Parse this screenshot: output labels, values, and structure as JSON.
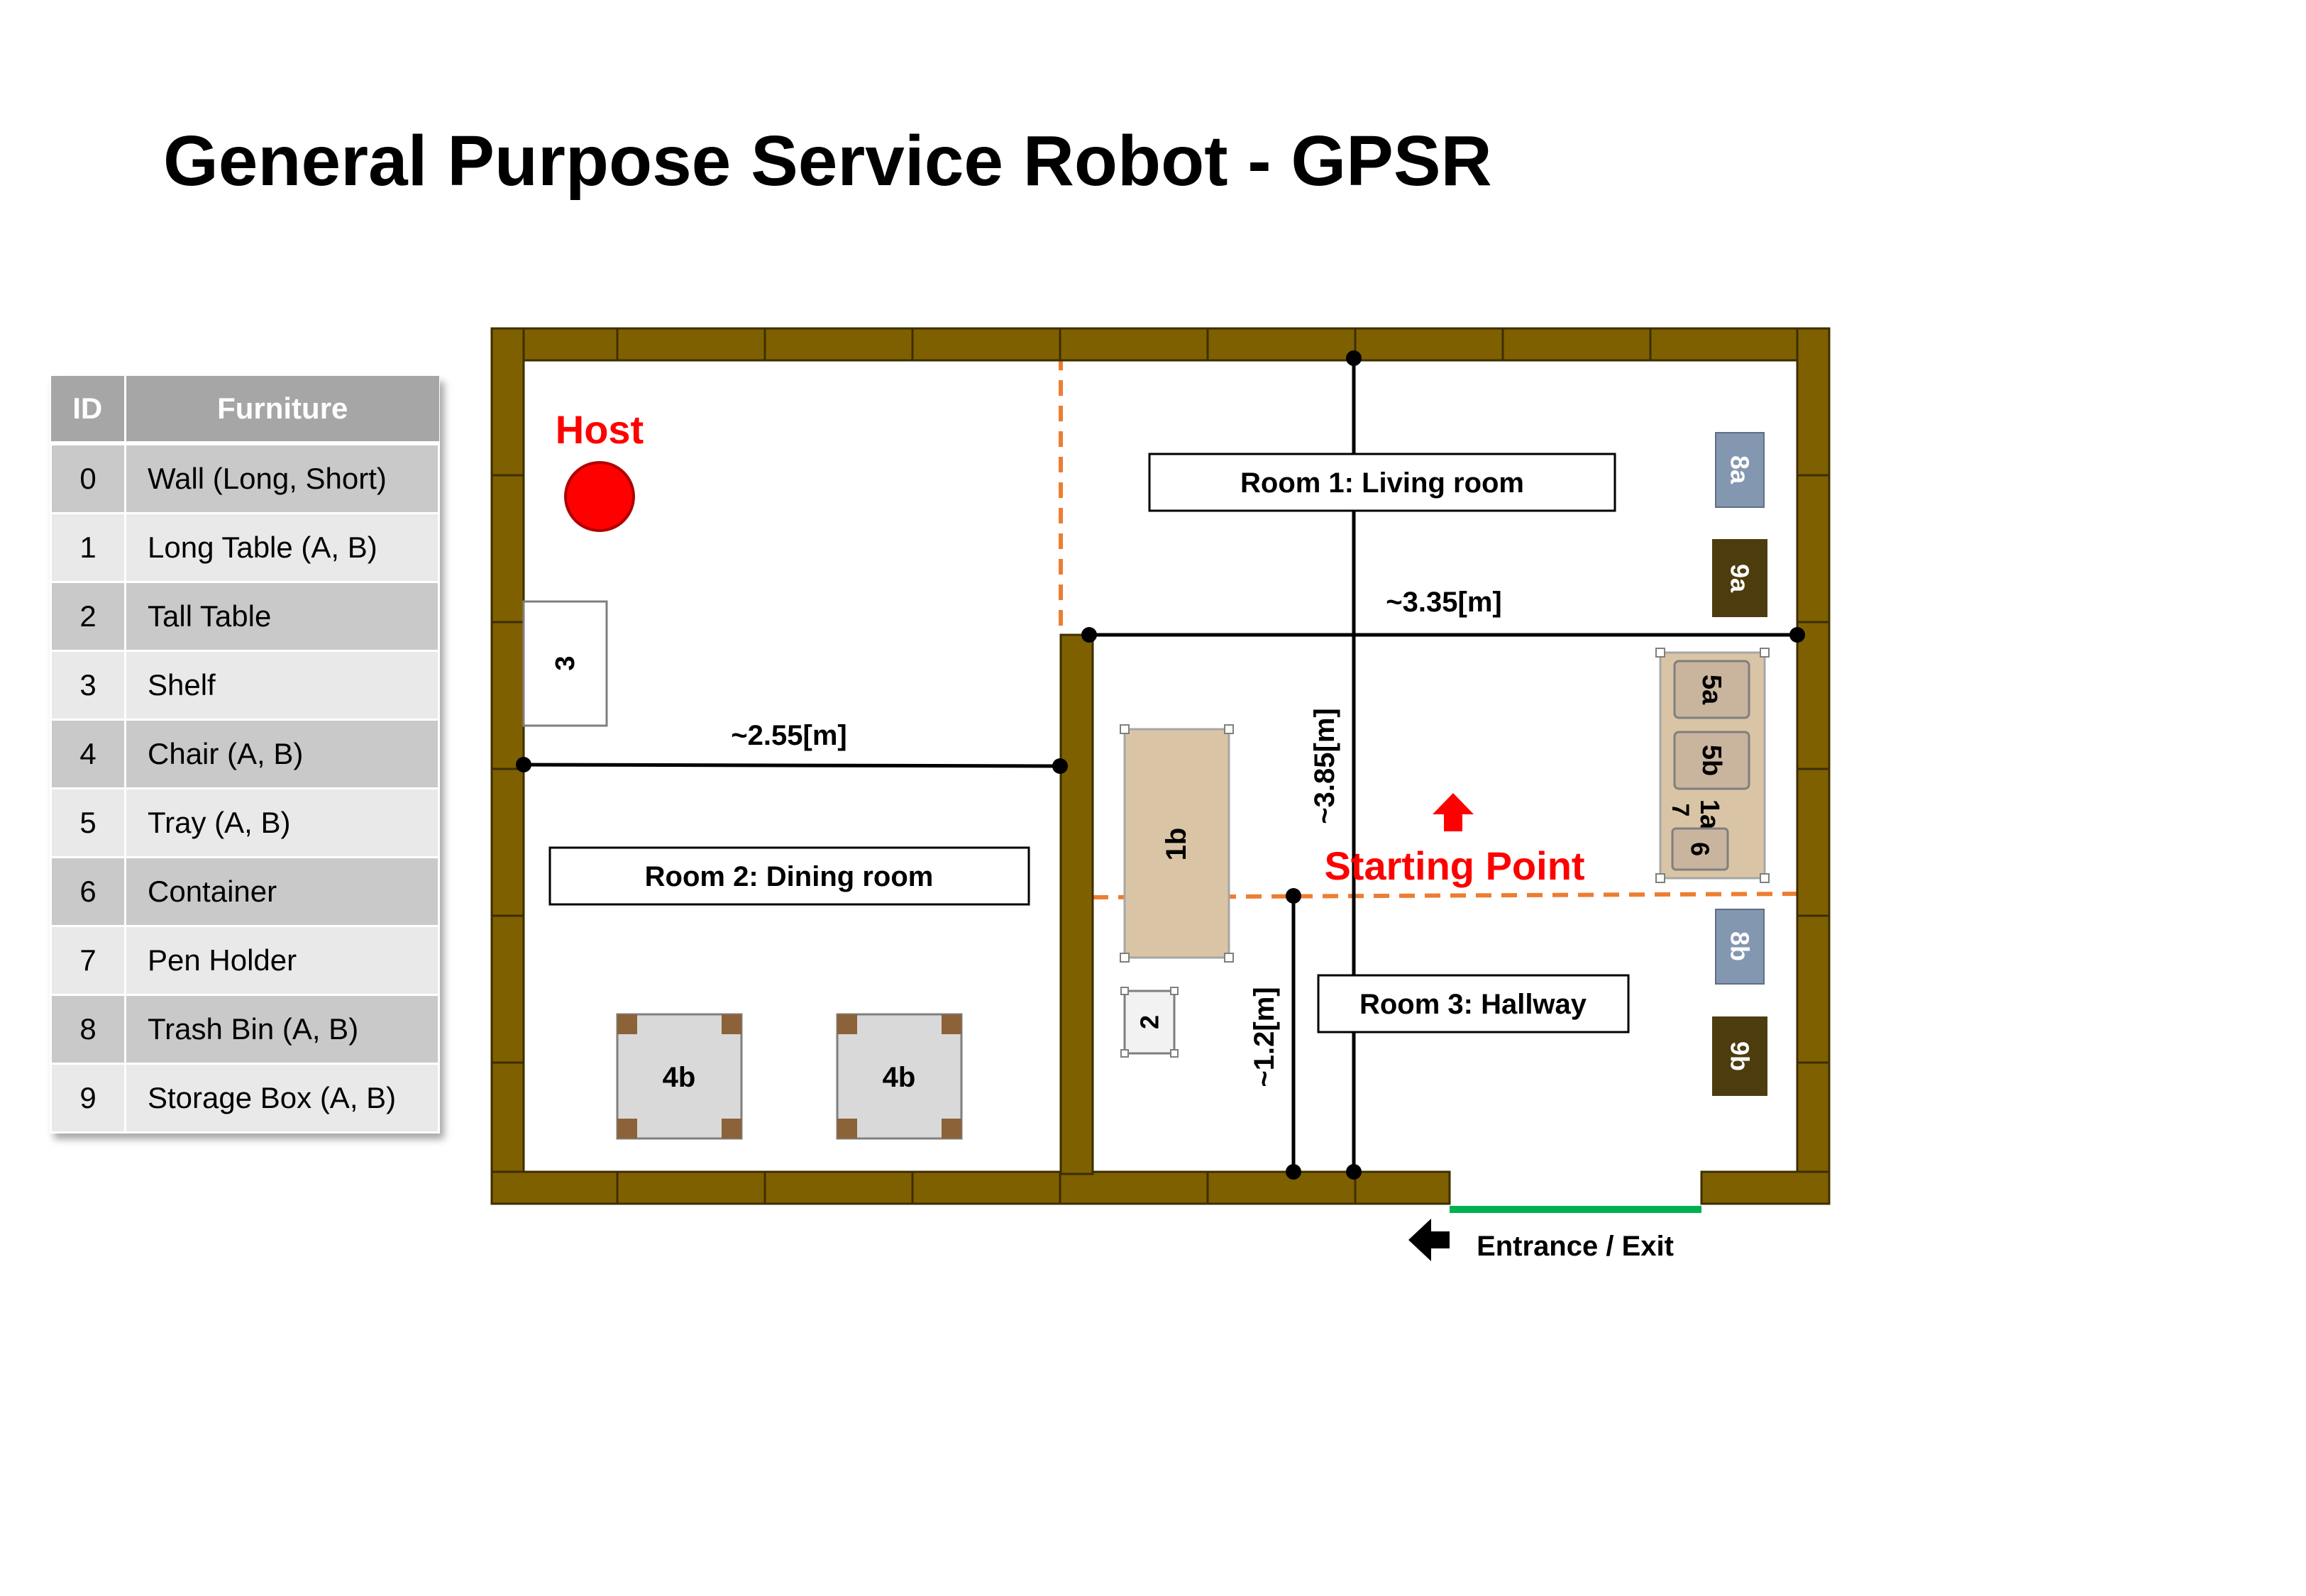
{
  "title": "General Purpose Service Robot - GPSR",
  "legend": {
    "headers": {
      "id": "ID",
      "furniture": "Furniture"
    },
    "rows": [
      {
        "id": "0",
        "name": "Wall (Long, Short)"
      },
      {
        "id": "1",
        "name": "Long Table (A, B)"
      },
      {
        "id": "2",
        "name": "Tall Table"
      },
      {
        "id": "3",
        "name": "Shelf"
      },
      {
        "id": "4",
        "name": "Chair (A, B)"
      },
      {
        "id": "5",
        "name": "Tray (A, B)"
      },
      {
        "id": "6",
        "name": "Container"
      },
      {
        "id": "7",
        "name": "Pen Holder"
      },
      {
        "id": "8",
        "name": "Trash Bin (A, B)"
      },
      {
        "id": "9",
        "name": "Storage Box (A, B)"
      }
    ]
  },
  "rooms": {
    "living": "Room 1: Living room",
    "dining": "Room 2: Dining room",
    "hallway": "Room 3: Hallway"
  },
  "markers": {
    "host": "Host",
    "start": "Starting Point",
    "entrance": "Entrance / Exit"
  },
  "dimensions": {
    "d1": "~3.35[m]",
    "d2": "~2.55[m]",
    "d3": "~3.85[m]",
    "d4": "~1.2[m]"
  },
  "furniture_labels": {
    "shelf": "3",
    "tall_table": "2",
    "long_table_b": "1b",
    "long_table_a": "1a",
    "chair_b_left": "4b",
    "chair_b_right": "4b",
    "tray_a": "5a",
    "tray_b": "5b",
    "container": "6",
    "pen_holder": "7",
    "trash_a": "8a",
    "trash_b": "8b",
    "storage_a": "9a",
    "storage_b": "9b"
  },
  "colors": {
    "wall": "#7f6000",
    "room_divider": "#ed7d31",
    "marker_red": "#ff0000",
    "entrance_green": "#00b050",
    "table_fill": "#d9c5a5",
    "trash_fill": "#8497b0",
    "storage_fill": "#4d3c0e"
  }
}
